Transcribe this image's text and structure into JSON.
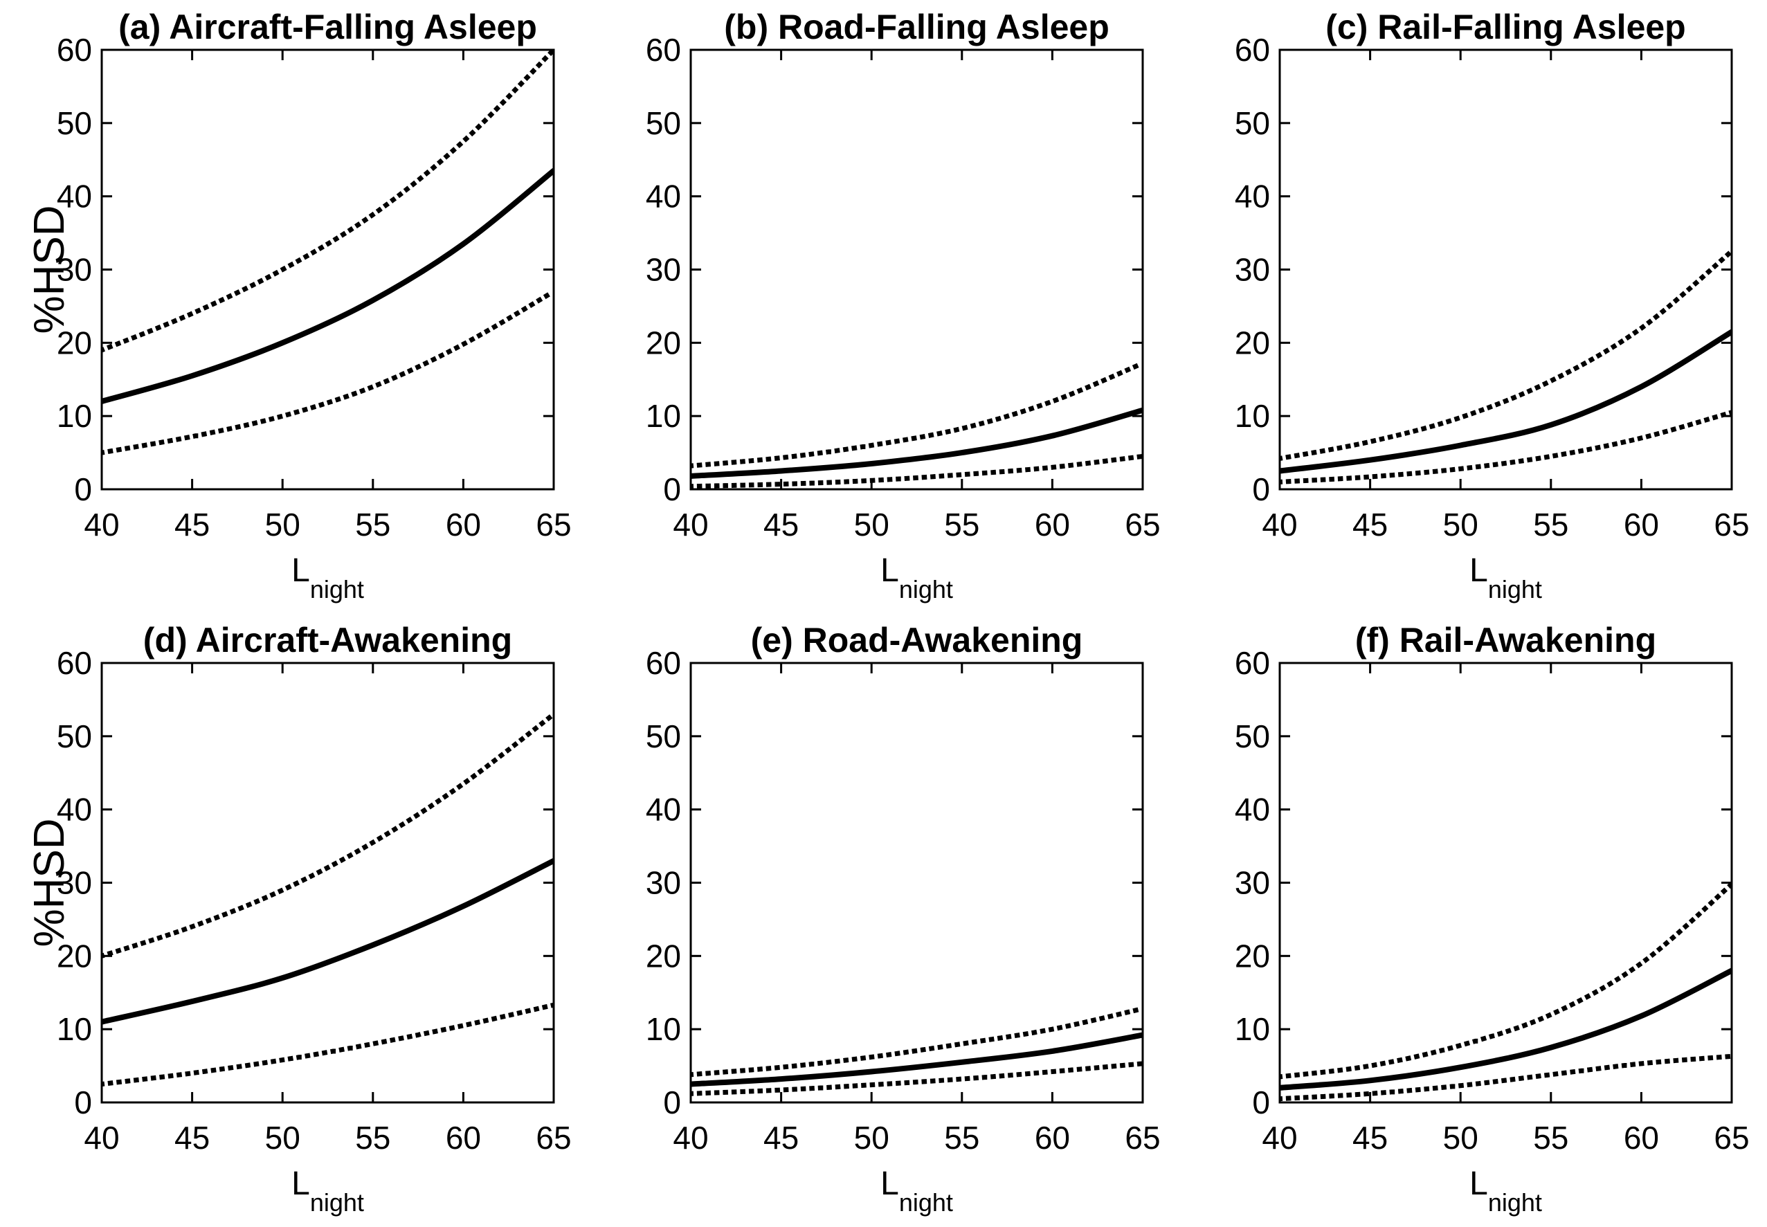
{
  "figure": {
    "background": "#ffffff",
    "line_color": "#000000",
    "axes": {
      "x": {
        "label": "L",
        "label_subscript": "night",
        "ticks": [
          40,
          45,
          50,
          55,
          60,
          65
        ]
      },
      "y": {
        "label": "%HSD",
        "ticks": [
          0,
          10,
          20,
          30,
          40,
          50,
          60
        ]
      }
    }
  },
  "chart_data": [
    {
      "id": "a",
      "type": "line",
      "title": "(a) Aircraft-Falling Asleep",
      "xlabel": "L",
      "xlabel_subscript": "night",
      "ylabel": "%HSD",
      "xlim": [
        40,
        65
      ],
      "ylim": [
        0,
        60
      ],
      "grid": false,
      "legend": null,
      "x": [
        40,
        45,
        50,
        55,
        60,
        65
      ],
      "series": [
        {
          "name": "solid-center-line",
          "style": "solid",
          "values": [
            12,
            15.5,
            20,
            25.8,
            33.5,
            43.5
          ]
        },
        {
          "name": "dotted-upper-line",
          "style": "dotted",
          "values": [
            19,
            24,
            30,
            37.5,
            47.5,
            60
          ]
        },
        {
          "name": "dotted-lower-line",
          "style": "dotted",
          "values": [
            5,
            7.2,
            10,
            14,
            19.8,
            27
          ]
        }
      ]
    },
    {
      "id": "b",
      "type": "line",
      "title": "(b) Road-Falling Asleep",
      "xlabel": "L",
      "xlabel_subscript": "night",
      "ylabel": "",
      "xlim": [
        40,
        65
      ],
      "ylim": [
        0,
        60
      ],
      "grid": false,
      "legend": null,
      "x": [
        40,
        45,
        50,
        55,
        60,
        65
      ],
      "series": [
        {
          "name": "solid-center-line",
          "style": "solid",
          "values": [
            1.8,
            2.5,
            3.5,
            5,
            7.3,
            10.8
          ]
        },
        {
          "name": "dotted-upper-line",
          "style": "dotted",
          "values": [
            3.2,
            4.3,
            6,
            8.3,
            12,
            17.2
          ]
        },
        {
          "name": "dotted-lower-line",
          "style": "dotted",
          "values": [
            0.4,
            0.7,
            1.2,
            2,
            3,
            4.5
          ]
        }
      ]
    },
    {
      "id": "c",
      "type": "line",
      "title": "(c) Rail-Falling Asleep",
      "xlabel": "L",
      "xlabel_subscript": "night",
      "ylabel": "",
      "xlim": [
        40,
        65
      ],
      "ylim": [
        0,
        60
      ],
      "grid": false,
      "legend": null,
      "x": [
        40,
        45,
        50,
        55,
        60,
        65
      ],
      "series": [
        {
          "name": "solid-center-line",
          "style": "solid",
          "values": [
            2.5,
            4,
            6,
            8.8,
            14,
            21.5
          ]
        },
        {
          "name": "dotted-upper-line",
          "style": "dotted",
          "values": [
            4.2,
            6.5,
            9.8,
            14.8,
            22,
            32.5
          ]
        },
        {
          "name": "dotted-lower-line",
          "style": "dotted",
          "values": [
            1,
            1.7,
            2.8,
            4.5,
            7,
            10.5
          ]
        }
      ]
    },
    {
      "id": "d",
      "type": "line",
      "title": "(d) Aircraft-Awakening",
      "xlabel": "L",
      "xlabel_subscript": "night",
      "ylabel": "%HSD",
      "xlim": [
        40,
        65
      ],
      "ylim": [
        0,
        60
      ],
      "grid": false,
      "legend": null,
      "x": [
        40,
        45,
        50,
        55,
        60,
        65
      ],
      "series": [
        {
          "name": "solid-center-line",
          "style": "solid",
          "values": [
            11,
            13.8,
            17,
            21.5,
            26.8,
            33
          ]
        },
        {
          "name": "dotted-upper-line",
          "style": "dotted",
          "values": [
            20,
            24,
            29,
            35.5,
            43.5,
            53
          ]
        },
        {
          "name": "dotted-lower-line",
          "style": "dotted",
          "values": [
            2.5,
            4,
            5.8,
            8,
            10.5,
            13.3
          ]
        }
      ]
    },
    {
      "id": "e",
      "type": "line",
      "title": "(e) Road-Awakening",
      "xlabel": "L",
      "xlabel_subscript": "night",
      "ylabel": "",
      "xlim": [
        40,
        65
      ],
      "ylim": [
        0,
        60
      ],
      "grid": false,
      "legend": null,
      "x": [
        40,
        45,
        50,
        55,
        60,
        65
      ],
      "series": [
        {
          "name": "solid-center-line",
          "style": "solid",
          "values": [
            2.5,
            3.2,
            4.2,
            5.5,
            7,
            9.2
          ]
        },
        {
          "name": "dotted-upper-line",
          "style": "dotted",
          "values": [
            3.8,
            4.8,
            6.2,
            8,
            10,
            12.8
          ]
        },
        {
          "name": "dotted-lower-line",
          "style": "dotted",
          "values": [
            1.2,
            1.7,
            2.4,
            3.2,
            4.2,
            5.3
          ]
        }
      ]
    },
    {
      "id": "f",
      "type": "line",
      "title": "(f) Rail-Awakening",
      "xlabel": "L",
      "xlabel_subscript": "night",
      "ylabel": "",
      "xlim": [
        40,
        65
      ],
      "ylim": [
        0,
        60
      ],
      "grid": false,
      "legend": null,
      "x": [
        40,
        45,
        50,
        55,
        60,
        65
      ],
      "series": [
        {
          "name": "solid-center-line",
          "style": "solid",
          "values": [
            2,
            3,
            4.8,
            7.5,
            11.8,
            18
          ]
        },
        {
          "name": "dotted-upper-line",
          "style": "dotted",
          "values": [
            3.5,
            5,
            7.8,
            12,
            19,
            29.8
          ]
        },
        {
          "name": "dotted-lower-line",
          "style": "dotted",
          "values": [
            0.5,
            1.2,
            2.3,
            3.8,
            5.3,
            6.3
          ]
        }
      ]
    }
  ]
}
